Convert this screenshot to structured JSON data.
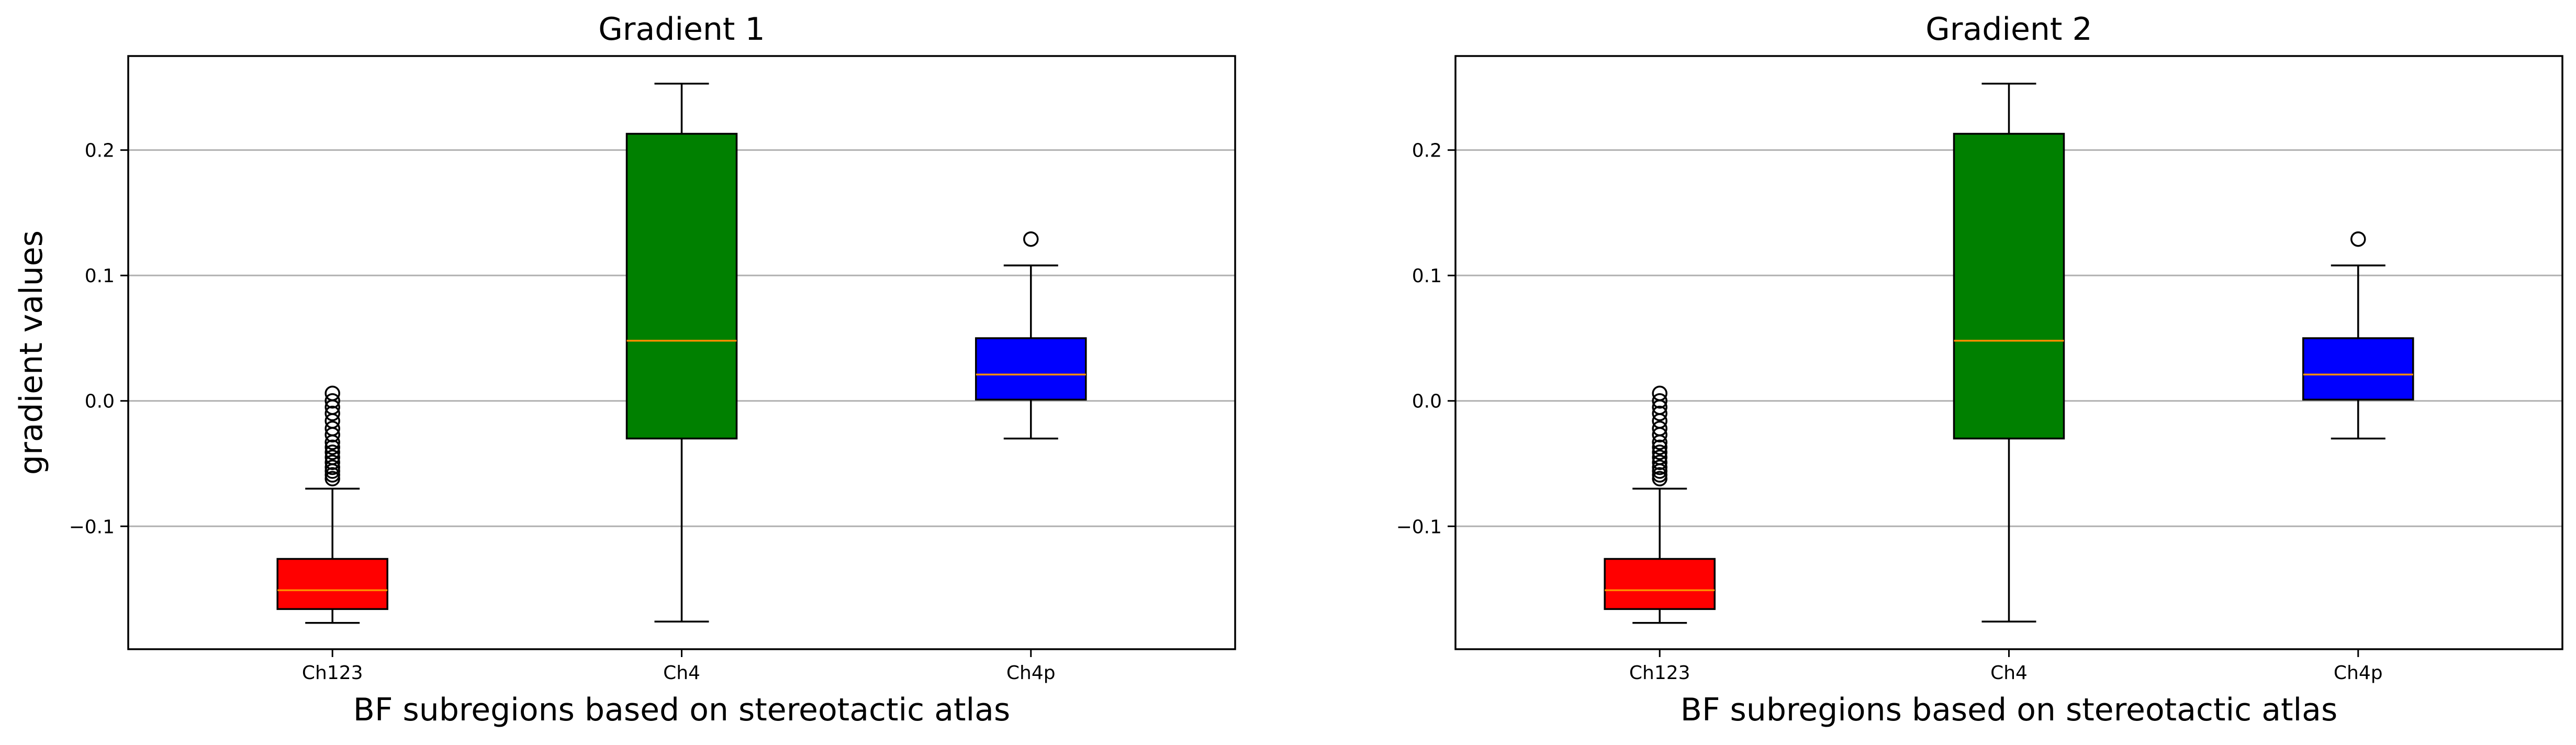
{
  "chart_data": [
    {
      "type": "box",
      "title": "Gradient 1",
      "xlabel": "BF subregions based on stereotactic atlas",
      "ylabel": "gradient values",
      "ylim": [
        -0.198,
        0.275
      ],
      "yticks": [
        -0.1,
        0.0,
        0.1,
        0.2
      ],
      "ytick_labels": [
        "−0.1",
        "0.0",
        "0.1",
        "0.2"
      ],
      "grid": "horizontal",
      "categories": [
        "Ch123",
        "Ch4",
        "Ch4p"
      ],
      "boxes": [
        {
          "category": "Ch123",
          "color": "#ff0000",
          "whisker_low": -0.177,
          "q1": -0.166,
          "median": -0.151,
          "q3": -0.126,
          "whisker_high": -0.07,
          "outliers": [
            0.006,
            0.0,
            -0.005,
            -0.01,
            -0.016,
            -0.022,
            -0.027,
            -0.033,
            -0.037,
            -0.041,
            -0.045,
            -0.049,
            -0.053,
            -0.056,
            -0.059,
            -0.062
          ]
        },
        {
          "category": "Ch4",
          "color": "#008000",
          "whisker_low": -0.176,
          "q1": -0.03,
          "median": 0.048,
          "q3": 0.213,
          "whisker_high": 0.253,
          "outliers": []
        },
        {
          "category": "Ch4p",
          "color": "#0000ff",
          "whisker_low": -0.03,
          "q1": 0.001,
          "median": 0.021,
          "q3": 0.05,
          "whisker_high": 0.108,
          "outliers": [
            0.129
          ]
        }
      ]
    },
    {
      "type": "box",
      "title": "Gradient 2",
      "xlabel": "BF subregions based on stereotactic atlas",
      "ylabel": "",
      "ylim": [
        -0.198,
        0.275
      ],
      "yticks": [
        -0.1,
        0.0,
        0.1,
        0.2
      ],
      "ytick_labels": [
        "−0.1",
        "0.0",
        "0.1",
        "0.2"
      ],
      "grid": "horizontal",
      "categories": [
        "Ch123",
        "Ch4",
        "Ch4p"
      ],
      "boxes": [
        {
          "category": "Ch123",
          "color": "#ff0000",
          "whisker_low": -0.177,
          "q1": -0.166,
          "median": -0.151,
          "q3": -0.126,
          "whisker_high": -0.07,
          "outliers": [
            0.006,
            0.0,
            -0.005,
            -0.01,
            -0.016,
            -0.022,
            -0.027,
            -0.033,
            -0.037,
            -0.041,
            -0.045,
            -0.049,
            -0.053,
            -0.056,
            -0.059,
            -0.062
          ]
        },
        {
          "category": "Ch4",
          "color": "#008000",
          "whisker_low": -0.176,
          "q1": -0.03,
          "median": 0.048,
          "q3": 0.213,
          "whisker_high": 0.253,
          "outliers": []
        },
        {
          "category": "Ch4p",
          "color": "#0000ff",
          "whisker_low": -0.03,
          "q1": 0.001,
          "median": 0.021,
          "q3": 0.05,
          "whisker_high": 0.108,
          "outliers": [
            0.129
          ]
        }
      ]
    }
  ],
  "colors": {
    "median": "#ff8c00",
    "grid": "#b0b0b0",
    "axis": "#000000"
  }
}
